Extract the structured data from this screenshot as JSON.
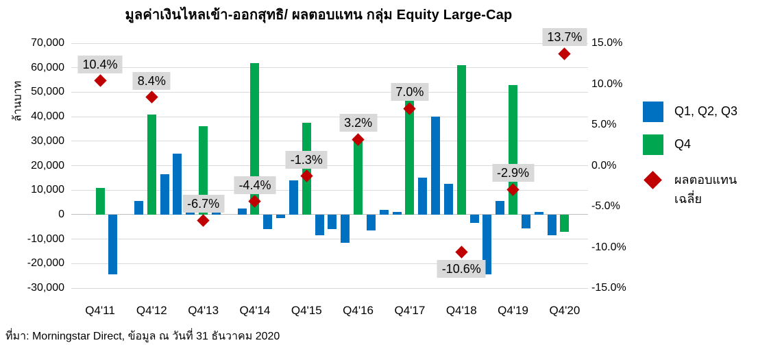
{
  "title": "มูลค่าเงินไหลเข้า-ออกสุทธิ/ ผลตอบแทน กลุ่ม Equity Large-Cap",
  "source": "ที่มา: Morningstar Direct, ข้อมูล ณ วันที่ 31 ธันวาคม 2020",
  "y_axis_title": "ล้านบาท",
  "colors": {
    "q123_blue": "#0070C0",
    "q4_green": "#00A650",
    "return_red": "#C00000",
    "label_bg": "#D9D9D9",
    "gridline": "#DADADA",
    "zero_line": "#C0C0C0"
  },
  "legend": {
    "items": [
      {
        "label": "Q1, Q2, Q3",
        "shape": "square",
        "color": "#0070C0"
      },
      {
        "label": "Q4",
        "shape": "square",
        "color": "#00A650"
      },
      {
        "label": "ผลตอบแทน เฉลี่ย",
        "shape": "diamond",
        "color": "#C00000"
      }
    ]
  },
  "chart_data": {
    "type": "bar",
    "title": "มูลค่าเงินไหลเข้า-ออกสุทธิ/ ผลตอบแทน กลุ่ม Equity Large-Cap",
    "ylabel": "ล้านบาท",
    "ylim": [
      -30000,
      70000
    ],
    "y2lim": [
      -15,
      15
    ],
    "grid": true,
    "legend_position": "right",
    "left_ticks": [
      "70,000",
      "60,000",
      "50,000",
      "40,000",
      "30,000",
      "20,000",
      "10,000",
      "0",
      "-10,000",
      "-20,000",
      "-30,000"
    ],
    "right_ticks": [
      "15.0%",
      "10.0%",
      "5.0%",
      "0.0%",
      "-5.0%",
      "-10.0%",
      "-15.0%"
    ],
    "x_tick_labels": [
      "Q4'11",
      "Q4'12",
      "Q4'13",
      "Q4'14",
      "Q4'15",
      "Q4'16",
      "Q4'17",
      "Q4'18",
      "Q4'19",
      "Q4'20"
    ],
    "bars": [
      {
        "q": "Q4'11",
        "v": 11000,
        "s": "Q4"
      },
      {
        "q": "Q1'12",
        "v": -24500,
        "s": "Q123"
      },
      {
        "q": "Q2'12",
        "v": 0,
        "s": "Q123"
      },
      {
        "q": "Q3'12",
        "v": 5500,
        "s": "Q123"
      },
      {
        "q": "Q4'12",
        "v": 41000,
        "s": "Q4"
      },
      {
        "q": "Q1'13",
        "v": 16500,
        "s": "Q123"
      },
      {
        "q": "Q2'13",
        "v": 25000,
        "s": "Q123"
      },
      {
        "q": "Q3'13",
        "v": 2000,
        "s": "Q123"
      },
      {
        "q": "Q4'13",
        "v": 36000,
        "s": "Q4"
      },
      {
        "q": "Q1'14",
        "v": 2500,
        "s": "Q123"
      },
      {
        "q": "Q2'14",
        "v": 0,
        "s": "Q123"
      },
      {
        "q": "Q3'14",
        "v": 2500,
        "s": "Q123"
      },
      {
        "q": "Q4'14",
        "v": 62000,
        "s": "Q4"
      },
      {
        "q": "Q1'15",
        "v": -6000,
        "s": "Q123"
      },
      {
        "q": "Q2'15",
        "v": -1500,
        "s": "Q123"
      },
      {
        "q": "Q3'15",
        "v": 14000,
        "s": "Q123"
      },
      {
        "q": "Q4'15",
        "v": 37500,
        "s": "Q4"
      },
      {
        "q": "Q1'16",
        "v": -8500,
        "s": "Q123"
      },
      {
        "q": "Q2'16",
        "v": -6000,
        "s": "Q123"
      },
      {
        "q": "Q3'16",
        "v": -11500,
        "s": "Q123"
      },
      {
        "q": "Q4'16",
        "v": 30500,
        "s": "Q4"
      },
      {
        "q": "Q1'17",
        "v": -6500,
        "s": "Q123"
      },
      {
        "q": "Q2'17",
        "v": 2000,
        "s": "Q123"
      },
      {
        "q": "Q3'17",
        "v": 1000,
        "s": "Q123"
      },
      {
        "q": "Q4'17",
        "v": 48000,
        "s": "Q4"
      },
      {
        "q": "Q1'18",
        "v": 15000,
        "s": "Q123"
      },
      {
        "q": "Q2'18",
        "v": 40000,
        "s": "Q123"
      },
      {
        "q": "Q3'18",
        "v": 12500,
        "s": "Q123"
      },
      {
        "q": "Q4'18",
        "v": 61000,
        "s": "Q4"
      },
      {
        "q": "Q1'19",
        "v": -3500,
        "s": "Q123"
      },
      {
        "q": "Q2'19",
        "v": -24500,
        "s": "Q123"
      },
      {
        "q": "Q3'19",
        "v": 5500,
        "s": "Q123"
      },
      {
        "q": "Q4'19",
        "v": 53000,
        "s": "Q4"
      },
      {
        "q": "Q1'20",
        "v": -5500,
        "s": "Q123"
      },
      {
        "q": "Q2'20",
        "v": 1000,
        "s": "Q123"
      },
      {
        "q": "Q3'20",
        "v": -8500,
        "s": "Q123"
      },
      {
        "q": "Q4'20",
        "v": -7000,
        "s": "Q4"
      }
    ],
    "returns": [
      {
        "x": "Q4'11",
        "pct": 10.4,
        "label": "10.4%",
        "label_pos": "above"
      },
      {
        "x": "Q4'12",
        "pct": 8.4,
        "label": "8.4%",
        "label_pos": "above"
      },
      {
        "x": "Q4'13",
        "pct": -6.7,
        "label": "-6.7%",
        "label_pos": "above"
      },
      {
        "x": "Q4'14",
        "pct": -4.4,
        "label": "-4.4%",
        "label_pos": "above"
      },
      {
        "x": "Q4'15",
        "pct": -1.3,
        "label": "-1.3%",
        "label_pos": "above"
      },
      {
        "x": "Q4'16",
        "pct": 3.2,
        "label": "3.2%",
        "label_pos": "above"
      },
      {
        "x": "Q4'17",
        "pct": 7.0,
        "label": "7.0%",
        "label_pos": "above"
      },
      {
        "x": "Q4'18",
        "pct": -10.6,
        "label": "-10.6%",
        "label_pos": "below"
      },
      {
        "x": "Q4'19",
        "pct": -2.9,
        "label": "-2.9%",
        "label_pos": "above"
      },
      {
        "x": "Q4'20",
        "pct": 13.7,
        "label": "13.7%",
        "label_pos": "above"
      }
    ]
  }
}
